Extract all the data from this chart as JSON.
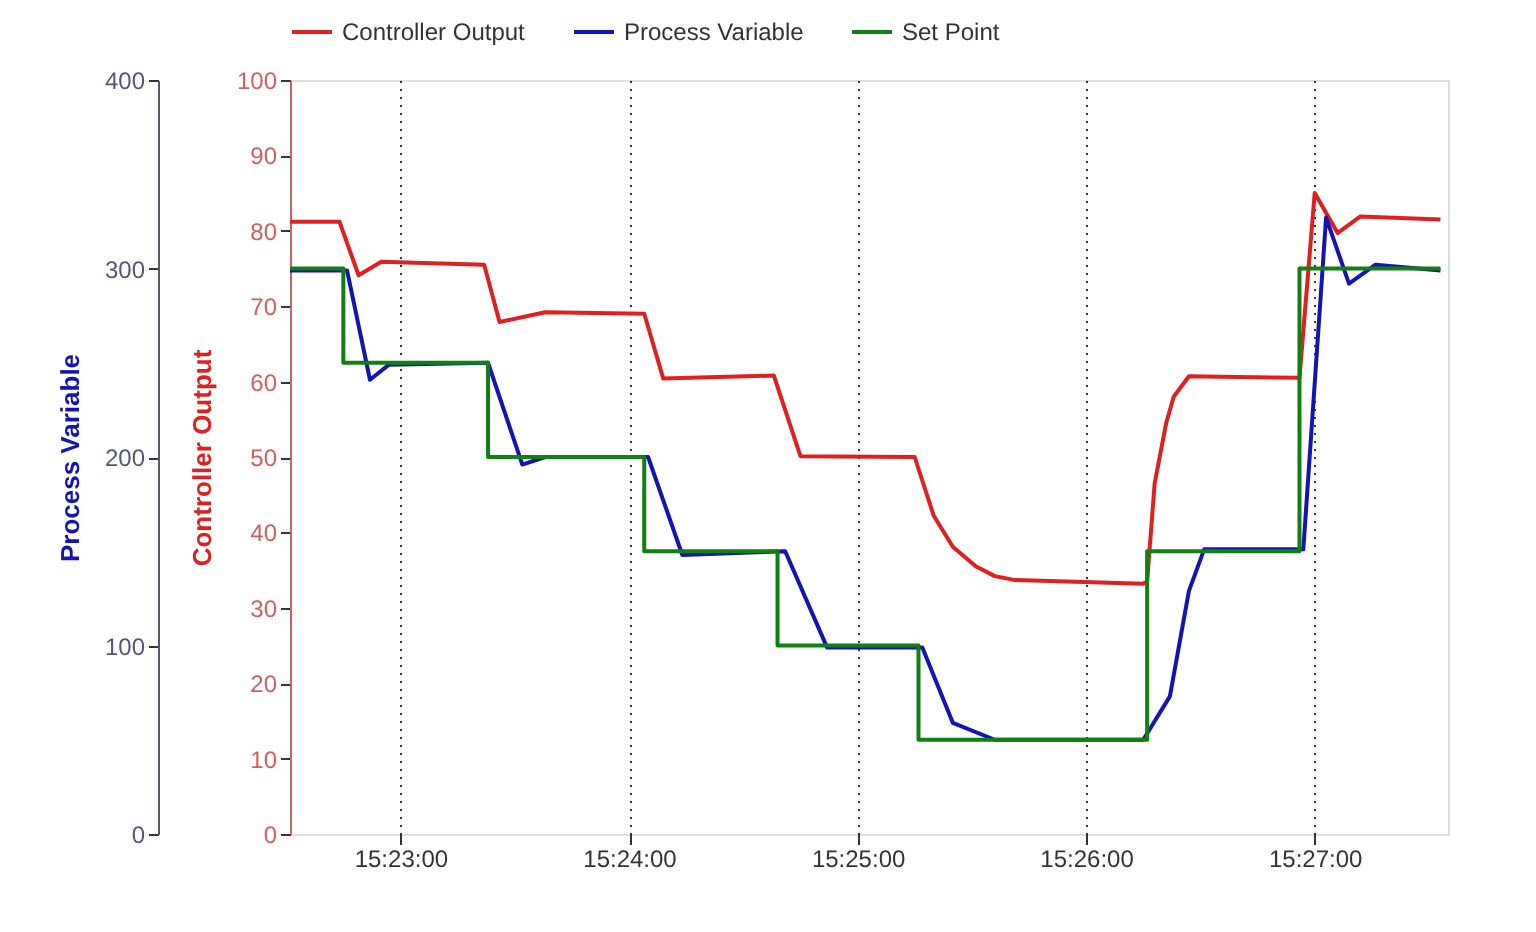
{
  "chart_data": {
    "type": "line",
    "ylabel": "Controller Output",
    "y2label": "Process Variable",
    "xlim": [
      15.37528,
      15.45972
    ],
    "xticks": [
      {
        "value": 15.38333,
        "label": "15:23:00"
      },
      {
        "value": 15.4,
        "label": "15:24:00"
      },
      {
        "value": 15.41667,
        "label": "15:25:00"
      },
      {
        "value": 15.43333,
        "label": "15:26:00"
      },
      {
        "value": 15.45,
        "label": "15:27:00"
      }
    ],
    "ylim": [
      0,
      100
    ],
    "yticks": [
      0,
      10,
      20,
      30,
      40,
      50,
      60,
      70,
      80,
      90,
      100
    ],
    "y2lim": [
      0,
      400
    ],
    "y2ticks": [
      0,
      100,
      200,
      300,
      400
    ],
    "grid": "x",
    "legend": "top",
    "series": [
      {
        "name": "Controller Output",
        "color": "#e02020",
        "axis": "y",
        "x": [
          15.37528,
          15.37889,
          15.38028,
          15.38194,
          15.38944,
          15.39056,
          15.39389,
          15.40111,
          15.4025,
          15.41056,
          15.4125,
          15.42083,
          15.42222,
          15.42361,
          15.42528,
          15.42667,
          15.42806,
          15.4375,
          15.43778,
          15.43833,
          15.43917,
          15.43972,
          15.44083,
          15.44889,
          15.45,
          15.45167,
          15.45333,
          15.45917
        ],
        "values": [
          81.2,
          81.2,
          74.1,
          75.9,
          75.5,
          67.9,
          69.2,
          69,
          60.4,
          60.8,
          50.1,
          50,
          42.2,
          38.1,
          35.5,
          34.2,
          33.7,
          33.2,
          33.5,
          46.5,
          54.5,
          58,
          60.7,
          60.5,
          85,
          79.7,
          81.9,
          81.5
        ]
      },
      {
        "name": "Process Variable",
        "color": "#1414b4",
        "axis": "y2",
        "x": [
          15.37528,
          15.37944,
          15.38111,
          15.3825,
          15.38972,
          15.39222,
          15.39389,
          15.40139,
          15.40389,
          15.41139,
          15.41444,
          15.42139,
          15.42361,
          15.42667,
          15.4375,
          15.43944,
          15.44083,
          15.44194,
          15.44917,
          15.45083,
          15.4525,
          15.45444,
          15.45917
        ],
        "values": [
          299,
          299,
          241,
          249,
          250,
          196,
          200,
          200,
          148,
          150,
          99,
          99,
          59,
          50,
          50,
          73,
          129,
          151,
          151,
          327,
          292,
          302,
          299
        ]
      },
      {
        "name": "Set Point",
        "color": "#108010",
        "type": "step",
        "axis": "y2",
        "x": [
          15.37528,
          15.37917,
          15.38972,
          15.40111,
          15.41083,
          15.42111,
          15.43778,
          15.44889,
          15.45917
        ],
        "values": [
          300,
          250,
          200,
          150,
          100,
          50,
          150,
          300,
          300
        ]
      }
    ]
  }
}
